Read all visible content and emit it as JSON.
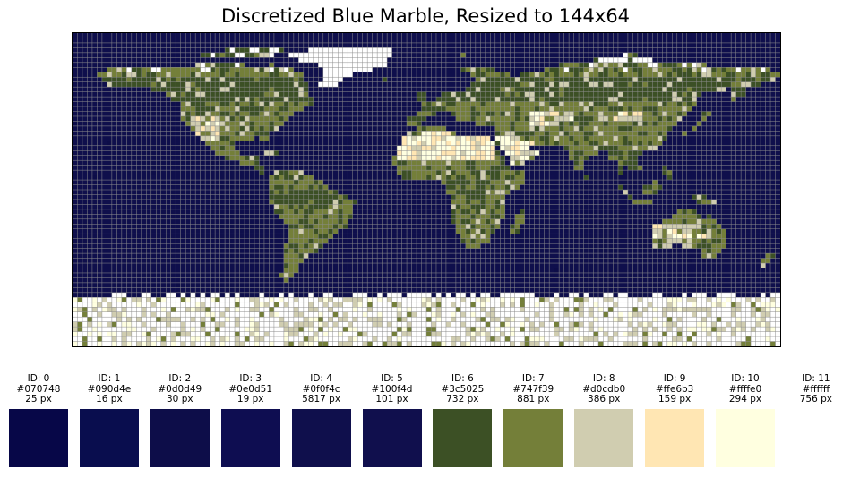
{
  "chart_data": {
    "type": "heatmap",
    "title": "Discretized Blue Marble, Resized to 144x64",
    "grid": true,
    "grid_size": [
      144,
      64
    ],
    "palette": [
      {
        "id": "ID: 0",
        "hex": "#070748",
        "count": "25 px"
      },
      {
        "id": "ID: 1",
        "hex": "#090d4e",
        "count": "16 px"
      },
      {
        "id": "ID: 2",
        "hex": "#0d0d49",
        "count": "30 px"
      },
      {
        "id": "ID: 3",
        "hex": "#0e0d51",
        "count": "19 px"
      },
      {
        "id": "ID: 4",
        "hex": "#0f0f4c",
        "count": "5817 px"
      },
      {
        "id": "ID: 5",
        "hex": "#100f4d",
        "count": "101 px"
      },
      {
        "id": "ID: 6",
        "hex": "#3c5025",
        "count": "732 px"
      },
      {
        "id": "ID: 7",
        "hex": "#747f39",
        "count": "881 px"
      },
      {
        "id": "ID: 8",
        "hex": "#d0cdb0",
        "count": "386 px"
      },
      {
        "id": "ID: 9",
        "hex": "#ffe6b3",
        "count": "159 px"
      },
      {
        "id": "ID: 10",
        "hex": "#ffffe0",
        "count": "294 px"
      },
      {
        "id": "ID: 11",
        "hex": "#ffffff",
        "count": "756 px"
      }
    ]
  }
}
